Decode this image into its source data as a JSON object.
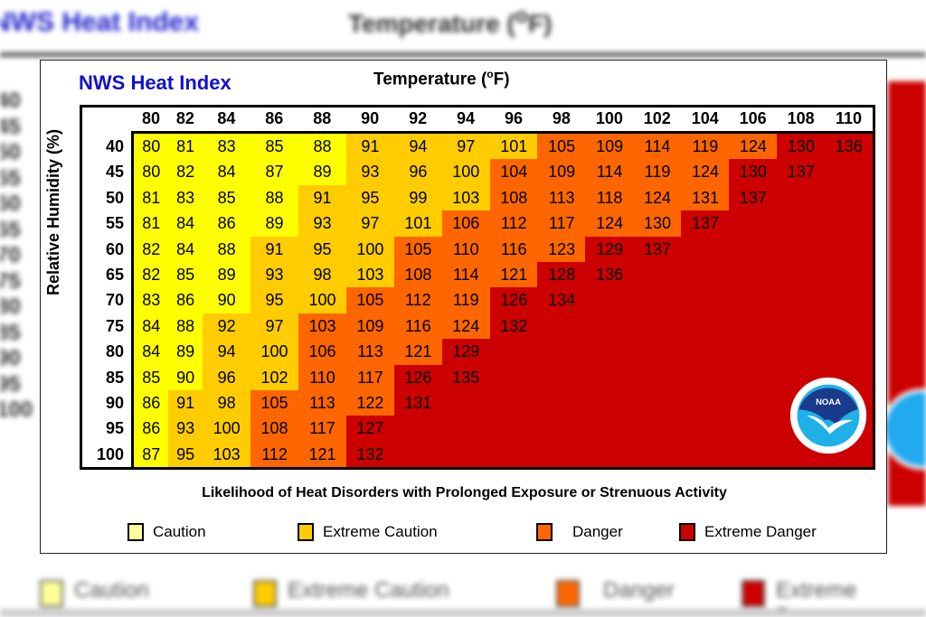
{
  "title": "NWS Heat Index",
  "temperature_label": "Temperature (",
  "temperature_unit_sup": "o",
  "temperature_unit_tail": "F)",
  "humidity_label": "Relative Humidity (%)",
  "subtitle": "Likelihood of Heat Disorders with Prolonged Exposure or Strenuous Activity",
  "logo": "NOAA",
  "colors": {
    "caution": "#ffff00",
    "extreme_caution": "#ffcc00",
    "danger": "#ff6600",
    "extreme_danger": "#cc0000"
  },
  "legend": [
    {
      "key": "C",
      "label": "Caution",
      "swatch": "#ffff99"
    },
    {
      "key": "E",
      "label": "Extreme Caution",
      "swatch": "#ffcc00"
    },
    {
      "key": "D",
      "label": "Danger",
      "swatch": "#ff6600"
    },
    {
      "key": "X",
      "label": "Extreme Danger",
      "swatch": "#cc0000"
    }
  ],
  "chart_data": {
    "type": "table",
    "title": "NWS Heat Index",
    "xlabel": "Temperature (°F)",
    "ylabel": "Relative Humidity (%)",
    "columns": [
      80,
      82,
      84,
      86,
      88,
      90,
      92,
      94,
      96,
      98,
      100,
      102,
      104,
      106,
      108,
      110
    ],
    "rows": [
      40,
      45,
      50,
      55,
      60,
      65,
      70,
      75,
      80,
      85,
      90,
      95,
      100
    ],
    "values": [
      [
        80,
        81,
        83,
        85,
        88,
        91,
        94,
        97,
        101,
        105,
        109,
        114,
        119,
        124,
        130,
        136
      ],
      [
        80,
        82,
        84,
        87,
        89,
        93,
        96,
        100,
        104,
        109,
        114,
        119,
        124,
        130,
        137,
        null
      ],
      [
        81,
        83,
        85,
        88,
        91,
        95,
        99,
        103,
        108,
        113,
        118,
        124,
        131,
        137,
        null,
        null
      ],
      [
        81,
        84,
        86,
        89,
        93,
        97,
        101,
        106,
        112,
        117,
        124,
        130,
        137,
        null,
        null,
        null
      ],
      [
        82,
        84,
        88,
        91,
        95,
        100,
        105,
        110,
        116,
        123,
        129,
        137,
        null,
        null,
        null,
        null
      ],
      [
        82,
        85,
        89,
        93,
        98,
        103,
        108,
        114,
        121,
        128,
        136,
        null,
        null,
        null,
        null,
        null
      ],
      [
        83,
        86,
        90,
        95,
        100,
        105,
        112,
        119,
        126,
        134,
        null,
        null,
        null,
        null,
        null,
        null
      ],
      [
        84,
        88,
        92,
        97,
        103,
        109,
        116,
        124,
        132,
        null,
        null,
        null,
        null,
        null,
        null,
        null
      ],
      [
        84,
        89,
        94,
        100,
        106,
        113,
        121,
        129,
        null,
        null,
        null,
        null,
        null,
        null,
        null,
        null
      ],
      [
        85,
        90,
        96,
        102,
        110,
        117,
        126,
        135,
        null,
        null,
        null,
        null,
        null,
        null,
        null,
        null
      ],
      [
        86,
        91,
        98,
        105,
        113,
        122,
        131,
        null,
        null,
        null,
        null,
        null,
        null,
        null,
        null,
        null
      ],
      [
        86,
        93,
        100,
        108,
        117,
        127,
        null,
        null,
        null,
        null,
        null,
        null,
        null,
        null,
        null,
        null
      ],
      [
        87,
        95,
        103,
        112,
        121,
        132,
        null,
        null,
        null,
        null,
        null,
        null,
        null,
        null,
        null,
        null
      ]
    ],
    "categories_per_row": [
      "CCCCCEEEEDDDDDXX",
      "CCCCCEEEDDDDDXXX",
      "CCCCEEEEDDDDDXXX",
      "CCCCEEEDDDDDXXXX",
      "CCCEEEDDDDXXXXXX",
      "CCCEEEDDDXXXXXXX",
      "CCCEEDDDXXXXXXXX",
      "CCEEDDDDXXXXXXXX",
      "CCEEDDDXXXXXXXXX",
      "CCEEDDXXXXXXXXXX",
      "CEEDDDXXXXXXXXXX",
      "CEEDDXXXXXXXXXXX",
      "CEEDDXXXXXXXXXXX"
    ],
    "legend": [
      "Caution",
      "Extreme Caution",
      "Danger",
      "Extreme Danger"
    ],
    "legend_position": "bottom"
  }
}
